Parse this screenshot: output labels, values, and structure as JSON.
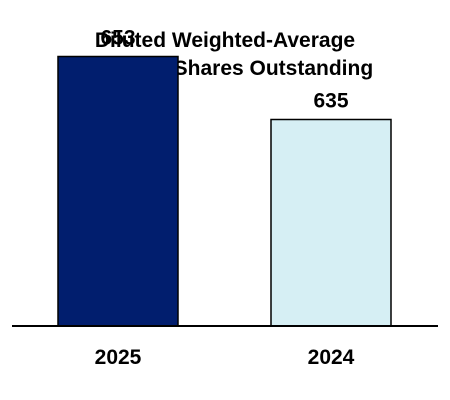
{
  "chart_data": {
    "type": "bar",
    "title_lines": [
      "Diluted Weighted-Average",
      "Common Shares Outstanding"
    ],
    "categories": [
      "2025",
      "2024"
    ],
    "values": [
      653,
      635
    ],
    "value_labels": [
      "653",
      "635"
    ],
    "bar_colors": [
      "#011e6e",
      "#d6eff4"
    ],
    "bar_edge_color": "#000000",
    "xlabel": "",
    "ylabel": "",
    "grid": false,
    "legend": "none"
  }
}
